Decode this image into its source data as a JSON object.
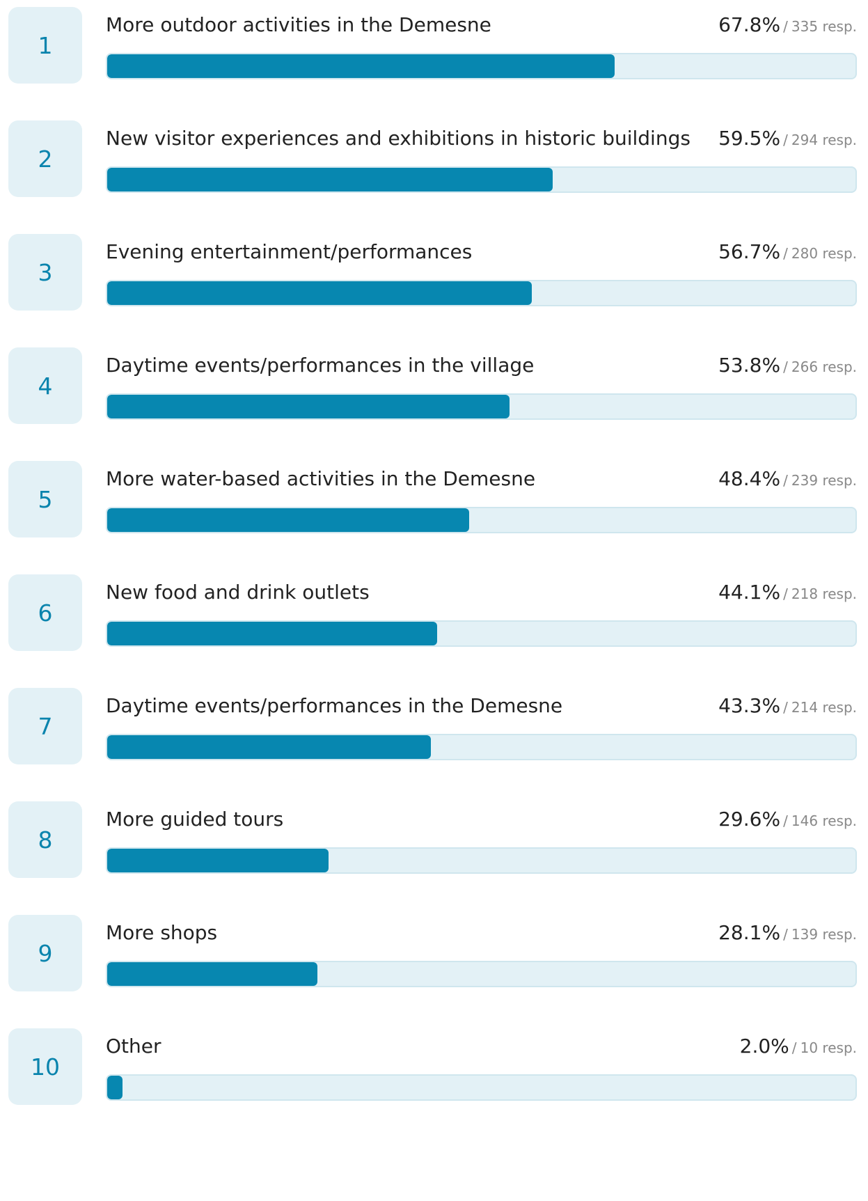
{
  "chart_data": {
    "type": "bar",
    "orientation": "horizontal",
    "xlim": [
      0,
      100
    ],
    "rows": [
      {
        "rank": "1",
        "label": "More outdoor activities in the Demesne",
        "percent": 67.8,
        "percent_text": "67.8%",
        "responses": 335,
        "responses_text": "335 resp."
      },
      {
        "rank": "2",
        "label": "New visitor experiences and exhibitions in historic buildings",
        "percent": 59.5,
        "percent_text": "59.5%",
        "responses": 294,
        "responses_text": "294 resp."
      },
      {
        "rank": "3",
        "label": "Evening entertainment/performances",
        "percent": 56.7,
        "percent_text": "56.7%",
        "responses": 280,
        "responses_text": "280 resp."
      },
      {
        "rank": "4",
        "label": "Daytime events/performances in the village",
        "percent": 53.8,
        "percent_text": "53.8%",
        "responses": 266,
        "responses_text": "266 resp."
      },
      {
        "rank": "5",
        "label": "More water-based activities in the Demesne",
        "percent": 48.4,
        "percent_text": "48.4%",
        "responses": 239,
        "responses_text": "239 resp."
      },
      {
        "rank": "6",
        "label": "New food and drink outlets",
        "percent": 44.1,
        "percent_text": "44.1%",
        "responses": 218,
        "responses_text": "218 resp."
      },
      {
        "rank": "7",
        "label": "Daytime events/performances in the Demesne",
        "percent": 43.3,
        "percent_text": "43.3%",
        "responses": 214,
        "responses_text": "214 resp."
      },
      {
        "rank": "8",
        "label": "More guided tours",
        "percent": 29.6,
        "percent_text": "29.6%",
        "responses": 146,
        "responses_text": "146 resp."
      },
      {
        "rank": "9",
        "label": "More shops",
        "percent": 28.1,
        "percent_text": "28.1%",
        "responses": 139,
        "responses_text": "139 resp."
      },
      {
        "rank": "10",
        "label": "Other",
        "percent": 2.0,
        "percent_text": "2.0%",
        "responses": 10,
        "responses_text": "10 resp."
      }
    ]
  },
  "separator": "/",
  "colors": {
    "bar_fill": "#0787b0",
    "bar_track": "#e3f1f6",
    "rank_badge_bg": "#e3f1f6",
    "rank_text": "#0a84ad",
    "label_text": "#222222",
    "muted_text": "#888888"
  }
}
